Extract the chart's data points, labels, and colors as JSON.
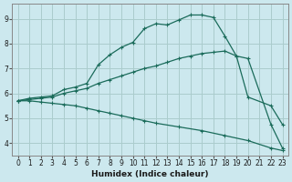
{
  "xlabel": "Humidex (Indice chaleur)",
  "bg_color": "#cce8ee",
  "grid_color": "#aacccc",
  "line_color": "#1a6b5a",
  "xlim": [
    -0.5,
    23.5
  ],
  "ylim": [
    3.5,
    9.6
  ],
  "yticks": [
    4,
    5,
    6,
    7,
    8,
    9
  ],
  "xticks": [
    0,
    1,
    2,
    3,
    4,
    5,
    6,
    7,
    8,
    9,
    10,
    11,
    12,
    13,
    14,
    15,
    16,
    17,
    18,
    19,
    20,
    21,
    22,
    23
  ],
  "line1_x": [
    0,
    1,
    2,
    3,
    4,
    5,
    6,
    7,
    8,
    9,
    10,
    11,
    12,
    13,
    14,
    15,
    16,
    17,
    18,
    19,
    20,
    22,
    23
  ],
  "line1_y": [
    5.7,
    5.8,
    5.85,
    5.9,
    6.15,
    6.25,
    6.4,
    7.15,
    7.55,
    7.85,
    8.05,
    8.6,
    8.8,
    8.75,
    8.95,
    9.15,
    9.15,
    9.05,
    8.3,
    7.5,
    5.85,
    5.5,
    4.75
  ],
  "line2_x": [
    0,
    1,
    2,
    3,
    4,
    5,
    6,
    7,
    8,
    9,
    10,
    11,
    12,
    13,
    14,
    15,
    16,
    17,
    18,
    19,
    20,
    22,
    23
  ],
  "line2_y": [
    5.7,
    5.75,
    5.8,
    5.85,
    6.0,
    6.1,
    6.2,
    6.4,
    6.55,
    6.7,
    6.85,
    7.0,
    7.1,
    7.25,
    7.4,
    7.5,
    7.6,
    7.65,
    7.7,
    7.5,
    7.4,
    4.75,
    3.8
  ],
  "line3_x": [
    0,
    1,
    2,
    3,
    4,
    5,
    6,
    7,
    8,
    9,
    10,
    11,
    12,
    14,
    16,
    18,
    20,
    22,
    23
  ],
  "line3_y": [
    5.7,
    5.7,
    5.65,
    5.6,
    5.55,
    5.5,
    5.4,
    5.3,
    5.2,
    5.1,
    5.0,
    4.9,
    4.8,
    4.65,
    4.5,
    4.3,
    4.1,
    3.8,
    3.7
  ]
}
